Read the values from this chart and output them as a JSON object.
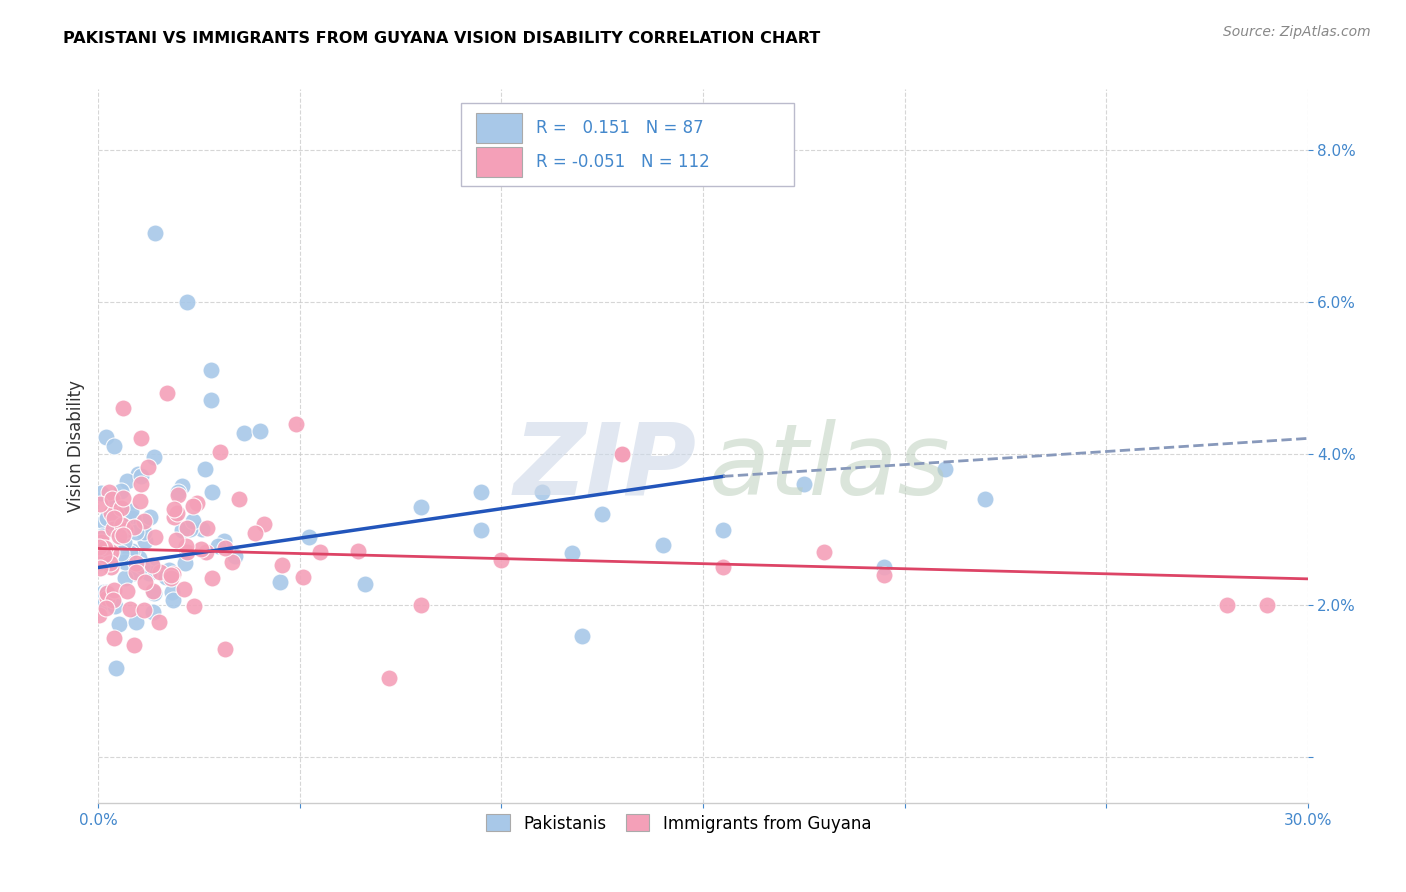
{
  "title": "PAKISTANI VS IMMIGRANTS FROM GUYANA VISION DISABILITY CORRELATION CHART",
  "source": "Source: ZipAtlas.com",
  "ylabel": "Vision Disability",
  "xlim": [
    0.0,
    0.3
  ],
  "ylim": [
    -0.006,
    0.088
  ],
  "r_blue": 0.151,
  "n_blue": 87,
  "r_pink": -0.051,
  "n_pink": 112,
  "blue_color": "#a8c8e8",
  "pink_color": "#f4a0b8",
  "blue_line_color": "#2255bb",
  "pink_line_color": "#dd4466",
  "dashed_line_color": "#8899bb",
  "legend_label_blue": "Pakistanis",
  "legend_label_pink": "Immigrants from Guyana",
  "blue_line_x0": 0.0,
  "blue_line_y0": 0.025,
  "blue_line_x_solid_end": 0.155,
  "blue_line_y_solid_end": 0.037,
  "blue_line_x1": 0.3,
  "blue_line_y1": 0.042,
  "pink_line_x0": 0.0,
  "pink_line_y0": 0.0275,
  "pink_line_x1": 0.3,
  "pink_line_y1": 0.0235,
  "watermark_zip_color": "#cdd8e8",
  "watermark_atlas_color": "#b8ccb8",
  "tick_color": "#4488cc",
  "axis_label_color": "#333333"
}
